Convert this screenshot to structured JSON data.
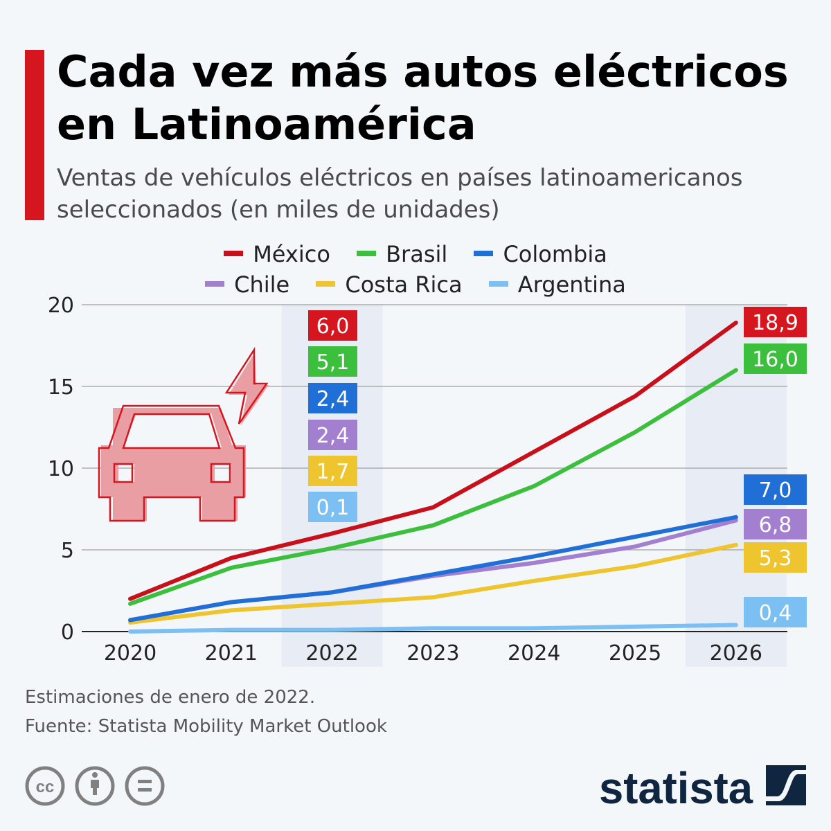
{
  "title": "Cada vez más autos eléctricos en Latinoamérica",
  "subtitle": "Ventas de vehículos eléctricos en países latinoamericanos seleccionados (en miles de unidades)",
  "chart_data": {
    "type": "line",
    "title": "Cada vez más autos eléctricos en Latinoamérica",
    "subtitle": "Ventas de vehículos eléctricos en países latinoamericanos seleccionados (en miles de unidades)",
    "x": [
      "2020",
      "2021",
      "2022",
      "2023",
      "2024",
      "2025",
      "2026"
    ],
    "ylim": [
      0,
      20
    ],
    "yticks": [
      "0",
      "5",
      "10",
      "15",
      "20"
    ],
    "grid": true,
    "legend_position": "top",
    "highlighted_categories": [
      "2022",
      "2026"
    ],
    "series": [
      {
        "name": "México",
        "color": "#c8101a",
        "label_color": "#d6161f",
        "values": [
          2.0,
          4.5,
          6.0,
          7.6,
          11.0,
          14.4,
          18.9
        ],
        "label_2022": "6,0",
        "label_2026": "18,9"
      },
      {
        "name": "Brasil",
        "color": "#3cbf3c",
        "label_color": "#3cbf3c",
        "values": [
          1.7,
          3.9,
          5.1,
          6.5,
          8.9,
          12.2,
          16.0
        ],
        "label_2022": "5,1",
        "label_2026": "16,0"
      },
      {
        "name": "Colombia",
        "color": "#1f6fd6",
        "label_color": "#1f6fd6",
        "values": [
          0.7,
          1.8,
          2.4,
          3.5,
          4.6,
          5.8,
          7.0
        ],
        "label_2022": "2,4",
        "label_2026": "7,0"
      },
      {
        "name": "Chile",
        "color": "#a37fd0",
        "label_color": "#a37fd0",
        "values": [
          0.7,
          1.8,
          2.4,
          3.4,
          4.2,
          5.2,
          6.8
        ],
        "label_2022": "2,4",
        "label_2026": "6,8"
      },
      {
        "name": "Costa Rica",
        "color": "#eec52e",
        "label_color": "#eec52e",
        "values": [
          0.55,
          1.3,
          1.7,
          2.1,
          3.1,
          4.0,
          5.3
        ],
        "label_2022": "1,7",
        "label_2026": "5,3"
      },
      {
        "name": "Argentina",
        "color": "#7cc0f3",
        "label_color": "#7cc0f3",
        "values": [
          0.0,
          0.1,
          0.1,
          0.2,
          0.2,
          0.3,
          0.4
        ],
        "label_2022": "0,1",
        "label_2026": "0,4"
      }
    ]
  },
  "footer": {
    "note": "Estimaciones de enero de 2022.",
    "source": "Fuente: Statista Mobility Market Outlook",
    "license_icons": [
      "creative-commons-icon",
      "attribution-icon",
      "no-derivatives-icon"
    ],
    "logo": "statista"
  },
  "colors": {
    "accent": "#d6161f",
    "background": "#f4f7fa",
    "highlight_band": "#e8edf5",
    "logo": "#0f2540"
  }
}
